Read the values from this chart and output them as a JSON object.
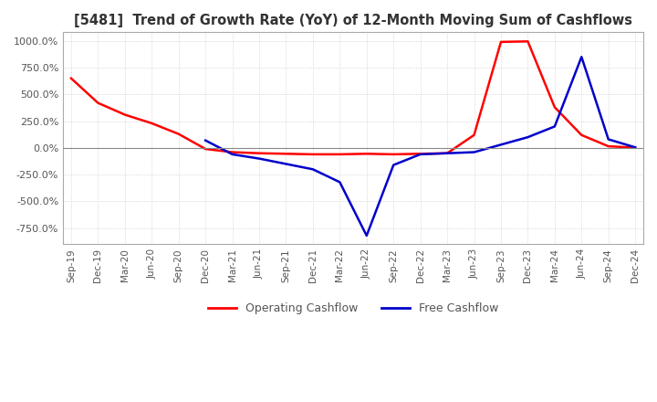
{
  "title": "[5481]  Trend of Growth Rate (YoY) of 12-Month Moving Sum of Cashflows",
  "title_fontsize": 10.5,
  "title_color": "#333333",
  "background_color": "#ffffff",
  "grid_color": "#cccccc",
  "ylim": [
    -900,
    1080
  ],
  "yticks": [
    -750,
    -500,
    -250,
    0,
    250,
    500,
    750,
    1000
  ],
  "legend_labels": [
    "Operating Cashflow",
    "Free Cashflow"
  ],
  "legend_colors": [
    "#ff0000",
    "#0000cc"
  ],
  "op_x": [
    "Sep-19",
    "Dec-19",
    "Mar-20",
    "Jun-20",
    "Sep-20",
    "Dec-20",
    "Mar-21",
    "Jun-21",
    "Sep-21",
    "Dec-21",
    "Mar-22",
    "Jun-22",
    "Sep-22",
    "Dec-22",
    "Mar-23",
    "Jun-23",
    "Sep-23",
    "Dec-23",
    "Mar-24",
    "Jun-24",
    "Sep-24",
    "Dec-24"
  ],
  "op_y": [
    650,
    420,
    310,
    230,
    130,
    -10,
    -40,
    -50,
    -55,
    -60,
    -60,
    -55,
    -60,
    -55,
    -50,
    120,
    990,
    995,
    380,
    120,
    15,
    2
  ],
  "fc_x": [
    "Dec-20",
    "Mar-21",
    "Jun-21",
    "Sep-21",
    "Dec-21",
    "Mar-22",
    "Jun-22",
    "Sep-22",
    "Dec-22",
    "Mar-23",
    "Jun-23",
    "Sep-23",
    "Dec-23",
    "Mar-24",
    "Jun-24",
    "Sep-24",
    "Dec-24"
  ],
  "fc_y": [
    70,
    -60,
    -100,
    -150,
    -200,
    -320,
    -820,
    -160,
    -60,
    -50,
    -40,
    30,
    100,
    200,
    850,
    80,
    5
  ],
  "x_labels": [
    "Sep-19",
    "Dec-19",
    "Mar-20",
    "Jun-20",
    "Sep-20",
    "Dec-20",
    "Mar-21",
    "Jun-21",
    "Sep-21",
    "Dec-21",
    "Mar-22",
    "Jun-22",
    "Sep-22",
    "Dec-22",
    "Mar-23",
    "Jun-23",
    "Sep-23",
    "Dec-23",
    "Mar-24",
    "Jun-24",
    "Sep-24",
    "Dec-24"
  ]
}
